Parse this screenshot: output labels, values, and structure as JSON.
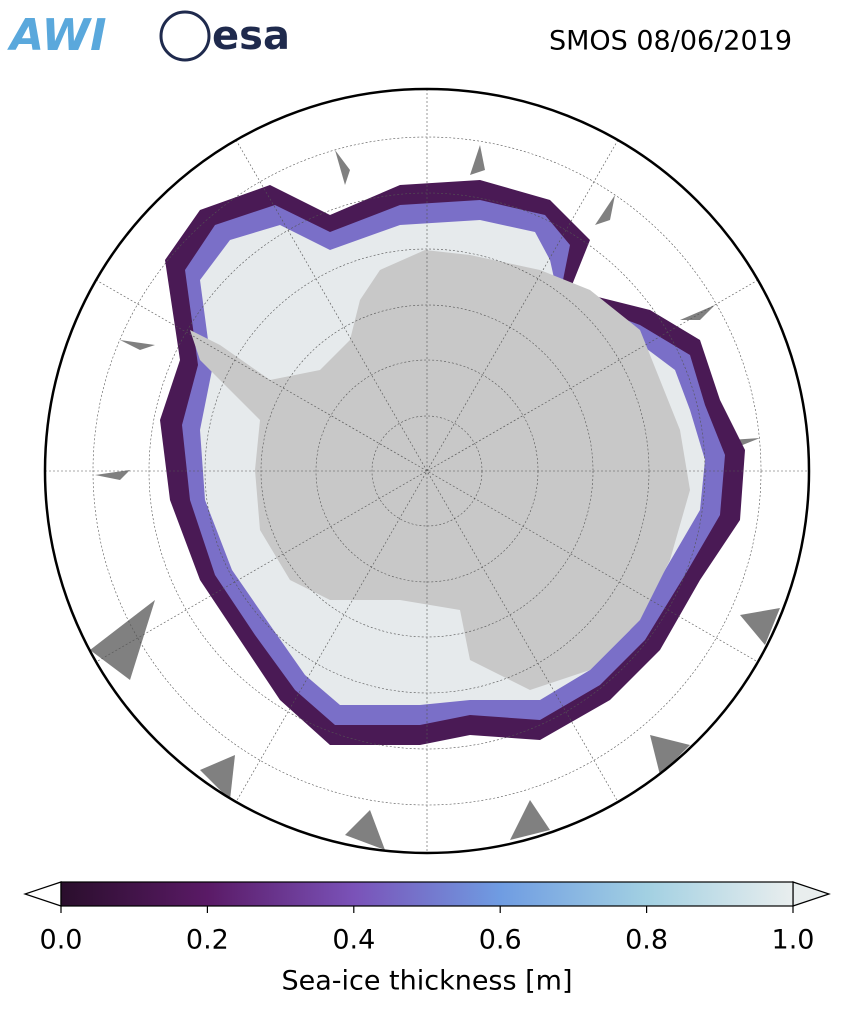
{
  "logos": [
    "AWI",
    "esa"
  ],
  "title": "SMOS 08/06/2019",
  "colorbar": {
    "label": "Sea-ice thickness [m]",
    "lim": [
      0,
      1
    ],
    "ticks": [
      {
        "value": 0,
        "label": "0.0"
      },
      {
        "value": 0.2,
        "label": "0.2"
      },
      {
        "value": 0.4,
        "label": "0.4"
      },
      {
        "value": 0.6,
        "label": "0.6"
      },
      {
        "value": 0.8,
        "label": "0.8"
      },
      {
        "value": 1,
        "label": "1.0"
      }
    ],
    "colormap": [
      "#2a0e2c",
      "#5a1a66",
      "#7a52b8",
      "#6f9ce2",
      "#a2d0e2",
      "#e9eeee"
    ]
  }
}
